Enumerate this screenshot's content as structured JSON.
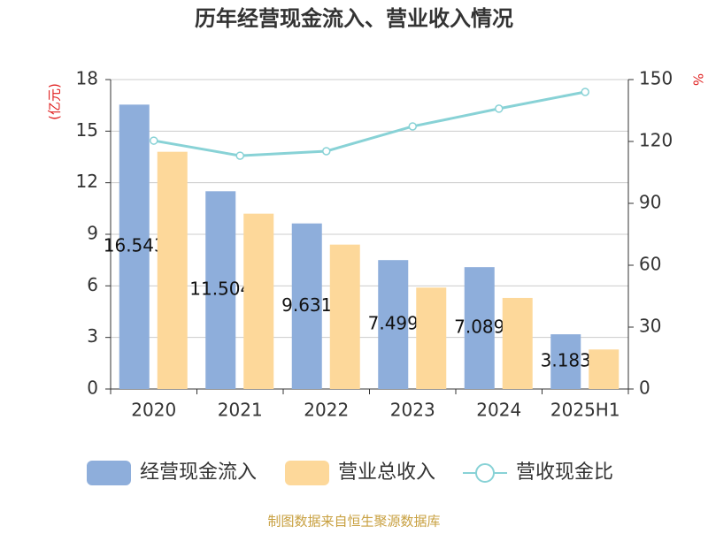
{
  "chart_data": {
    "type": "bar",
    "title": "历年经营现金流入、营业收入情况",
    "y_label": "(亿元)",
    "y2_label": "%",
    "source": "制图数据来自恒生聚源数据库",
    "categories": [
      "2020",
      "2021",
      "2022",
      "2023",
      "2024",
      "2025H1"
    ],
    "series": [
      {
        "name": "经营现金流入",
        "color": "#8eaedb",
        "values": [
          16.543,
          11.504,
          9.631,
          7.499,
          7.089,
          3.183
        ]
      },
      {
        "name": "营业总收入",
        "color": "#fdd89a",
        "values": [
          13.8,
          10.2,
          8.4,
          5.9,
          5.3,
          2.3
        ]
      },
      {
        "name": "营收现金比",
        "color": "#88d2d6",
        "type": "line",
        "axis": "y2",
        "values": [
          120.4,
          113.1,
          115.3,
          127.3,
          135.9,
          144
        ]
      }
    ],
    "ylim": [
      0,
      18
    ],
    "yticks": [
      0,
      3,
      6,
      9,
      12,
      15,
      18
    ],
    "y2lim": [
      0,
      150
    ],
    "y2ticks": [
      0,
      30,
      60,
      90,
      120,
      150
    ],
    "grid": true
  }
}
